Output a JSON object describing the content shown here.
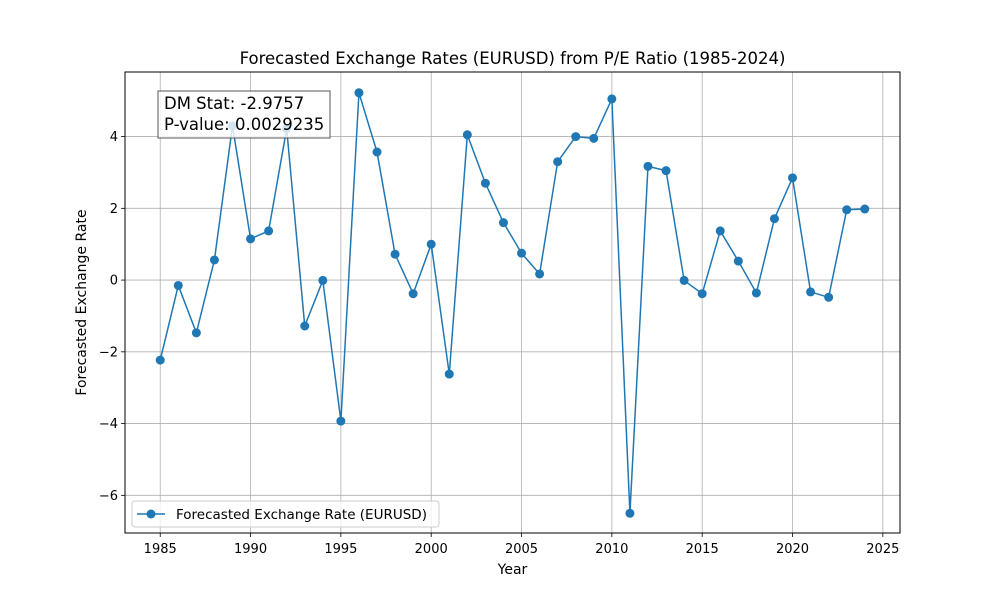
{
  "chart_data": {
    "type": "line",
    "title": "Forecasted Exchange Rates (EURUSD) from P/E Ratio (1985-2024)",
    "xlabel": "Year",
    "ylabel": "Forecasted Exchange Rate",
    "xlim": [
      1983.05,
      2025.95
    ],
    "ylim": [
      -7.05,
      5.8
    ],
    "x_ticks": [
      1985,
      1990,
      1995,
      2000,
      2005,
      2010,
      2015,
      2020,
      2025
    ],
    "y_ticks": [
      -6,
      -4,
      -2,
      0,
      2,
      4
    ],
    "grid": true,
    "legend_position": "lower-left",
    "series": [
      {
        "name": "Forecasted Exchange Rate (EURUSD)",
        "color": "#1f77b4",
        "marker": "circle",
        "x": [
          1985,
          1986,
          1987,
          1988,
          1989,
          1990,
          1991,
          1992,
          1993,
          1994,
          1995,
          1996,
          1997,
          1998,
          1999,
          2000,
          2001,
          2002,
          2003,
          2004,
          2005,
          2006,
          2007,
          2008,
          2009,
          2010,
          2011,
          2012,
          2013,
          2014,
          2015,
          2016,
          2017,
          2018,
          2019,
          2020,
          2021,
          2022,
          2023,
          2024
        ],
        "values": [
          -2.23,
          -0.15,
          -1.47,
          0.56,
          4.3,
          1.15,
          1.37,
          4.22,
          -1.28,
          -0.01,
          -3.93,
          5.22,
          3.57,
          0.72,
          -0.38,
          1.0,
          -2.62,
          4.05,
          2.7,
          1.6,
          0.75,
          0.17,
          3.3,
          4.0,
          3.95,
          5.05,
          -6.5,
          3.17,
          3.05,
          -0.01,
          -0.38,
          1.37,
          0.53,
          -0.36,
          1.71,
          2.85,
          -0.33,
          -0.48,
          1.96,
          1.98
        ]
      }
    ],
    "annotation": {
      "line1": "DM Stat: -2.9757",
      "line2": "P-value: 0.0029235"
    }
  }
}
